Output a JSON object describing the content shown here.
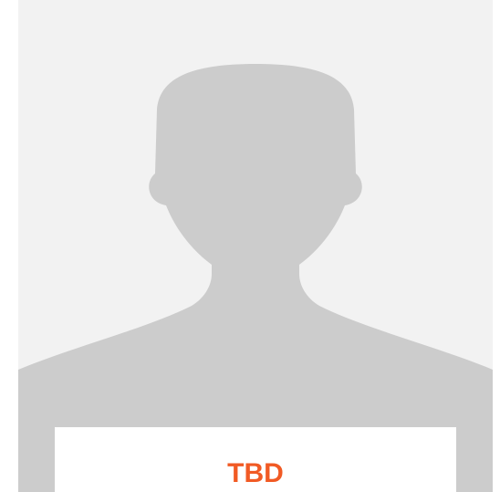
{
  "profile": {
    "name": "TBD"
  }
}
